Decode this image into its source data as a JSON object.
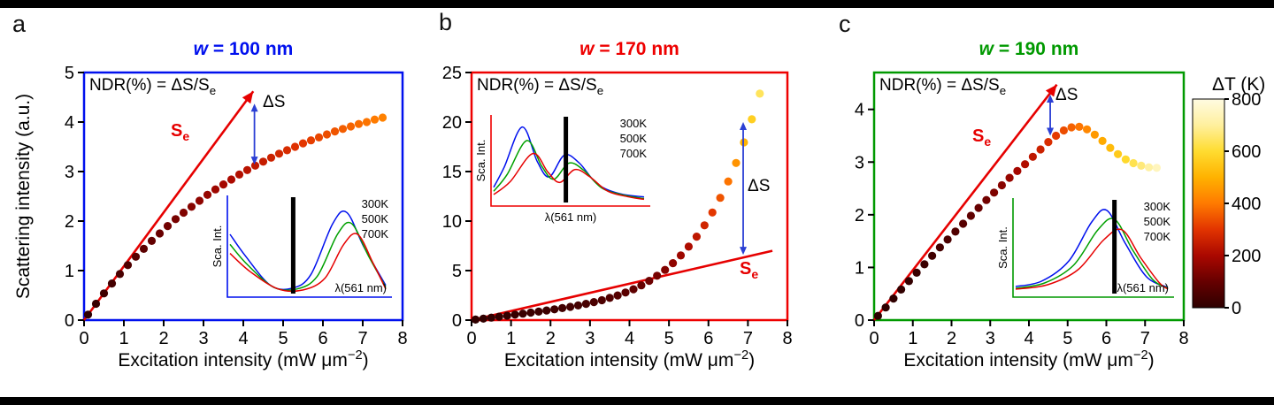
{
  "figure": {
    "ylabel": "Scattering intensity (a.u.)",
    "xlabel_pre": "Excitation intensity (mW μm",
    "xlabel_sup": "−2",
    "xlabel_post": ")",
    "se_color": "#e60000",
    "arrow_color": "#2b3fd4"
  },
  "colorbar": {
    "title": "ΔT (K)",
    "min": 0,
    "max": 800,
    "ticks": [
      800,
      600,
      400,
      200,
      0
    ],
    "stops": [
      {
        "t": 0,
        "c": "#2e0000"
      },
      {
        "t": 100,
        "c": "#660000"
      },
      {
        "t": 200,
        "c": "#aa0800"
      },
      {
        "t": 300,
        "c": "#e23400"
      },
      {
        "t": 400,
        "c": "#ff7a00"
      },
      {
        "t": 500,
        "c": "#ffb200"
      },
      {
        "t": 600,
        "c": "#ffdc30"
      },
      {
        "t": 700,
        "c": "#fff09e"
      },
      {
        "t": 800,
        "c": "#fffbe2"
      }
    ]
  },
  "chart_data": [
    {
      "type": "scatter",
      "panel_label": "a",
      "title_w": "w",
      "title_rest": " = 100 nm",
      "color": "#0010ee",
      "xlim": [
        0,
        8
      ],
      "ylim": [
        0,
        5
      ],
      "xticks": [
        0,
        1,
        2,
        3,
        4,
        5,
        6,
        7,
        8
      ],
      "yticks": [
        0,
        1,
        2,
        3,
        4,
        5
      ],
      "ndr_pre": "NDR(%) = ΔS/S",
      "ndr_sub": "e",
      "se_pre": "S",
      "se_sub": "e",
      "ds_label": "ΔS",
      "se_line": {
        "x1": 0,
        "y1": 0,
        "x2": 4.25,
        "y2": 4.62,
        "arrow": true
      },
      "ds_arrow": {
        "x": 4.28,
        "y_low": 3.14,
        "y_high": 4.37
      },
      "x": [
        0.1,
        0.3,
        0.5,
        0.7,
        0.9,
        1.1,
        1.3,
        1.5,
        1.7,
        1.9,
        2.1,
        2.3,
        2.5,
        2.7,
        2.9,
        3.1,
        3.3,
        3.5,
        3.7,
        3.9,
        4.1,
        4.3,
        4.5,
        4.7,
        4.9,
        5.1,
        5.3,
        5.5,
        5.7,
        5.9,
        6.1,
        6.3,
        6.5,
        6.7,
        6.9,
        7.1,
        7.3,
        7.5
      ],
      "y": [
        0.11,
        0.33,
        0.54,
        0.74,
        0.93,
        1.11,
        1.28,
        1.44,
        1.6,
        1.75,
        1.9,
        2.04,
        2.17,
        2.29,
        2.41,
        2.53,
        2.64,
        2.74,
        2.84,
        2.94,
        3.03,
        3.12,
        3.2,
        3.28,
        3.36,
        3.43,
        3.5,
        3.57,
        3.63,
        3.69,
        3.75,
        3.81,
        3.86,
        3.91,
        3.96,
        4.0,
        4.05,
        4.09
      ],
      "dT": [
        6,
        17,
        28,
        39,
        50,
        61,
        72,
        83,
        94,
        105,
        116,
        127,
        138,
        149,
        160,
        171,
        182,
        193,
        204,
        215,
        226,
        237,
        248,
        259,
        270,
        281,
        292,
        303,
        314,
        325,
        336,
        347,
        358,
        369,
        380,
        391,
        402,
        413
      ],
      "inset": {
        "ylabel": "Sca. Int.",
        "xlabel": "λ(561 nm)",
        "xlabel_pos": "inside",
        "bar_frac": 0.4,
        "shape": "a",
        "legend": [
          {
            "label": "300K",
            "color": "#0010ee"
          },
          {
            "label": "500K",
            "color": "#00a000"
          },
          {
            "label": "700K",
            "color": "#e60000"
          }
        ]
      }
    },
    {
      "type": "scatter",
      "panel_label": "b",
      "title_w": "w",
      "title_rest": " = 170 nm",
      "color": "#ee0000",
      "xlim": [
        0,
        8
      ],
      "ylim": [
        0,
        25
      ],
      "xticks": [
        0,
        1,
        2,
        3,
        4,
        5,
        6,
        7,
        8
      ],
      "yticks": [
        0,
        5,
        10,
        15,
        20,
        25
      ],
      "ndr_pre": "NDR(%) = ΔS/S",
      "ndr_sub": "e",
      "se_pre": "S",
      "se_sub": "e",
      "ds_label": "ΔS",
      "se_line": {
        "x1": 0,
        "y1": 0,
        "x2": 7.62,
        "y2": 7.0,
        "arrow": false
      },
      "ds_arrow": {
        "x": 6.88,
        "y_low": 6.6,
        "y_high": 20.0
      },
      "x": [
        0.1,
        0.3,
        0.5,
        0.7,
        0.9,
        1.1,
        1.3,
        1.5,
        1.7,
        1.9,
        2.1,
        2.3,
        2.5,
        2.7,
        2.9,
        3.1,
        3.3,
        3.5,
        3.7,
        3.9,
        4.1,
        4.3,
        4.5,
        4.7,
        4.9,
        5.1,
        5.3,
        5.5,
        5.7,
        5.9,
        6.1,
        6.3,
        6.5,
        6.7,
        6.9,
        7.1,
        7.3
      ],
      "y": [
        0.05,
        0.15,
        0.25,
        0.35,
        0.45,
        0.55,
        0.65,
        0.76,
        0.86,
        0.97,
        1.09,
        1.21,
        1.34,
        1.48,
        1.64,
        1.82,
        2.01,
        2.24,
        2.49,
        2.79,
        3.12,
        3.51,
        3.96,
        4.48,
        5.07,
        5.75,
        6.53,
        7.42,
        8.43,
        9.57,
        10.87,
        12.35,
        14.0,
        15.87,
        17.95,
        20.28,
        22.87
      ],
      "dT": [
        1,
        4,
        7,
        10,
        13,
        15,
        18,
        21,
        24,
        27,
        31,
        34,
        38,
        41,
        46,
        51,
        56,
        63,
        70,
        78,
        87,
        98,
        111,
        125,
        142,
        161,
        183,
        208,
        236,
        268,
        304,
        346,
        392,
        444,
        503,
        568,
        640
      ],
      "inset": {
        "ylabel": "Sca. Int.",
        "xlabel": "λ(561 nm)",
        "xlabel_pos": "below",
        "bar_frac": 0.47,
        "shape": "b",
        "legend": [
          {
            "label": "300K",
            "color": "#0010ee"
          },
          {
            "label": "500K",
            "color": "#00a000"
          },
          {
            "label": "700K",
            "color": "#e60000"
          }
        ]
      }
    },
    {
      "type": "scatter",
      "panel_label": "c",
      "title_w": "w",
      "title_rest": " = 190 nm",
      "color": "#009900",
      "xlim": [
        0,
        8
      ],
      "ylim": [
        0,
        4.7
      ],
      "xticks": [
        0,
        1,
        2,
        3,
        4,
        5,
        6,
        7,
        8
      ],
      "yticks": [
        0,
        1,
        2,
        3,
        4
      ],
      "ndr_pre": "NDR(%) = ΔS/S",
      "ndr_sub": "e",
      "se_pre": "S",
      "se_sub": "e",
      "ds_label": "ΔS",
      "se_line": {
        "x1": 0,
        "y1": 0,
        "x2": 4.72,
        "y2": 4.47,
        "arrow": true
      },
      "ds_arrow": {
        "x": 4.55,
        "y_low": 3.5,
        "y_high": 4.28
      },
      "x": [
        0.1,
        0.3,
        0.5,
        0.7,
        0.9,
        1.1,
        1.3,
        1.5,
        1.7,
        1.9,
        2.1,
        2.3,
        2.5,
        2.7,
        2.9,
        3.1,
        3.3,
        3.5,
        3.7,
        3.9,
        4.1,
        4.3,
        4.5,
        4.7,
        4.9,
        5.1,
        5.3,
        5.5,
        5.7,
        5.9,
        6.1,
        6.3,
        6.5,
        6.7,
        6.9,
        7.1,
        7.3
      ],
      "y": [
        0.08,
        0.24,
        0.41,
        0.58,
        0.74,
        0.9,
        1.06,
        1.22,
        1.38,
        1.53,
        1.68,
        1.83,
        1.98,
        2.13,
        2.28,
        2.42,
        2.56,
        2.7,
        2.83,
        2.96,
        3.1,
        3.24,
        3.38,
        3.5,
        3.6,
        3.66,
        3.67,
        3.62,
        3.52,
        3.4,
        3.27,
        3.15,
        3.05,
        2.98,
        2.93,
        2.9,
        2.89
      ],
      "dT": [
        0,
        1,
        4,
        7,
        11,
        17,
        24,
        32,
        40,
        51,
        62,
        74,
        88,
        102,
        118,
        135,
        152,
        172,
        192,
        213,
        235,
        259,
        284,
        309,
        336,
        364,
        393,
        424,
        455,
        487,
        521,
        556,
        592,
        628,
        667,
        706,
        746
      ],
      "inset": {
        "ylabel": "Sca. Int.",
        "xlabel": "λ(561 nm)",
        "xlabel_pos": "inside",
        "bar_frac": 0.63,
        "shape": "c",
        "legend": [
          {
            "label": "300K",
            "color": "#0010ee"
          },
          {
            "label": "500K",
            "color": "#00a000"
          },
          {
            "label": "700K",
            "color": "#e60000"
          }
        ]
      }
    }
  ]
}
